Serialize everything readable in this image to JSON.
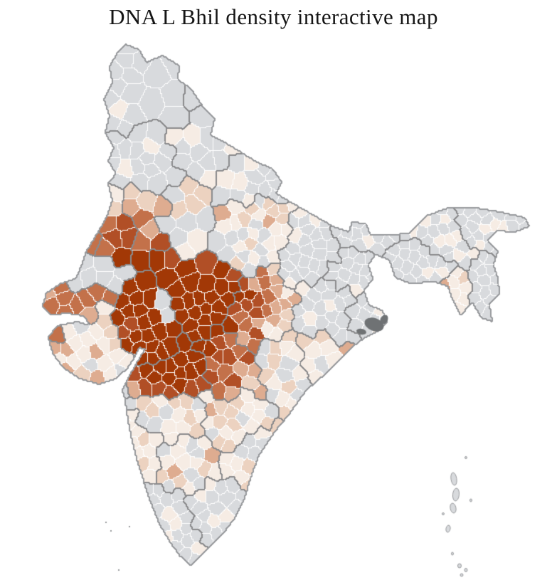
{
  "title": "DNA L Bhil density interactive map",
  "map": {
    "type": "choropleth",
    "geography": "India, district-level outline map",
    "background_color": "#ffffff",
    "colors": {
      "no_data": "#d8dadd",
      "scale_low_to_high": [
        "#f6ece4",
        "#ecd2c0",
        "#deac90",
        "#c3714a",
        "#b14f26",
        "#a23806"
      ],
      "district_border": "#ffffff",
      "state_border": "#8a8a8c",
      "coastline": "#989a9d",
      "river_delta": "#6f7274"
    },
    "pattern": {
      "highest_density": "dark red-brown district cluster at the Gujarat–Rajasthan–Madhya Pradesh–Maharashtra junction",
      "high_density_ring": "medium brown districts in central/western Rajasthan, Kutch, eastern Gujarat, western Madhya Pradesh and northwestern Maharashtra",
      "moderate_fringe": "salmon districts shading outward from the core",
      "low_density": "pale peach scatter across the Deccan, Chhattisgarh, Odisha, Haryana and western Uttar Pradesh",
      "no_data_or_zero": "gray districts across Kashmir, Punjab, the Gangetic east, the northeast, Kerala, Tamil Nadu and the islands"
    }
  }
}
